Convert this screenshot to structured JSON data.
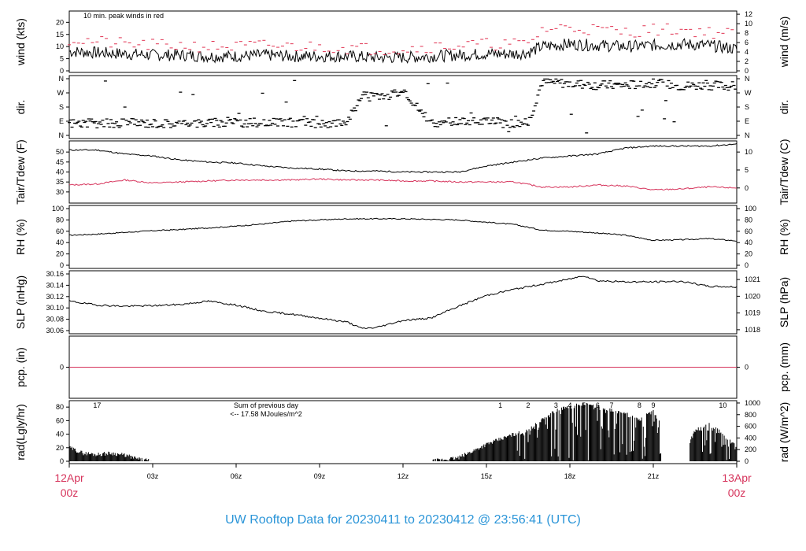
{
  "title": "UW Rooftop Data for 20230411  to  20230412 @ 23:56:41  (UTC)",
  "colors": {
    "title": "#2b95d8",
    "peak_wind": "#e0304f",
    "dewpoint": "#d6335b",
    "precip_line": "#d6335b",
    "solar_annotation": "#b026d6",
    "time_start_end": "#d6335b",
    "trace": "#000000"
  },
  "x_axis": {
    "tick_labels": [
      "12Apr",
      "03z",
      "06z",
      "09z",
      "12z",
      "15z",
      "18z",
      "21z",
      "13Apr"
    ],
    "start_label": {
      "line1": "12Apr",
      "line2": "00z"
    },
    "end_label": {
      "line1": "13Apr",
      "line2": "00z"
    },
    "hours": [
      0,
      3,
      6,
      9,
      12,
      15,
      18,
      21,
      24
    ]
  },
  "chart_data": [
    {
      "type": "line",
      "panel": "wind",
      "left_label": "wind (kts)",
      "right_label": "wind (m/s)",
      "annotation": "10 min. peak winds in red",
      "left_ticks": [
        "0",
        "5",
        "10",
        "15",
        "20"
      ],
      "right_ticks": [
        "0",
        "2",
        "4",
        "6",
        "8",
        "10",
        "12"
      ],
      "ylim": [
        0,
        24
      ],
      "series": [
        {
          "name": "wind speed",
          "x_hours": [
            0,
            1,
            2,
            3,
            4,
            5,
            6,
            7,
            8,
            9,
            10,
            11,
            12,
            13,
            14,
            15,
            16,
            16.5,
            17,
            18,
            19,
            20,
            21,
            22,
            23,
            24
          ],
          "values": [
            8,
            7.5,
            7,
            6.5,
            6.5,
            6,
            6,
            6.5,
            6,
            6,
            6,
            5.5,
            5.5,
            6,
            6.5,
            7,
            7,
            7.5,
            10,
            11,
            10.5,
            10,
            10.5,
            11,
            10.5,
            9
          ]
        },
        {
          "name": "10 min. peak winds",
          "x_hours": [
            0,
            1,
            2,
            3,
            4,
            5,
            6,
            7,
            8,
            9,
            10,
            11,
            12,
            13,
            14,
            15,
            16,
            16.5,
            17,
            18,
            19,
            20,
            21,
            22,
            23,
            24
          ],
          "values": [
            13,
            12,
            11,
            10.5,
            10.5,
            10,
            10,
            10.5,
            10,
            10,
            9.5,
            9,
            9,
            10,
            10.5,
            11,
            11,
            11,
            17,
            18,
            17,
            16,
            17,
            17,
            16,
            15
          ]
        }
      ]
    },
    {
      "type": "scatter",
      "panel": "direction",
      "left_label": "dir.",
      "right_label": "dir.",
      "left_ticks": [
        "N",
        "E",
        "S",
        "W",
        "N"
      ],
      "right_ticks": [
        "N",
        "E",
        "S",
        "W",
        "N"
      ],
      "ylim": [
        0,
        360
      ],
      "series": [
        {
          "name": "wind direction",
          "x_hours": [
            0,
            1,
            2,
            3,
            4,
            5,
            6,
            7,
            8,
            9,
            10,
            10.5,
            11,
            12,
            13,
            14,
            15,
            16,
            16.5,
            17,
            18,
            19,
            20,
            21,
            22,
            23,
            24
          ],
          "values": [
            80,
            75,
            80,
            80,
            75,
            80,
            80,
            80,
            80,
            75,
            85,
            250,
            240,
            270,
            80,
            85,
            85,
            80,
            75,
            340,
            330,
            320,
            320,
            330,
            315,
            320,
            310
          ]
        }
      ]
    },
    {
      "type": "line",
      "panel": "temperature",
      "left_label": "Tair/Tdew (F)",
      "right_label": "Tair/Tdew (C)",
      "left_ticks": [
        "30",
        "35",
        "40",
        "45",
        "50"
      ],
      "right_ticks": [
        "0",
        "5",
        "10"
      ],
      "ylim": [
        25,
        55
      ],
      "series": [
        {
          "name": "Tair",
          "x_hours": [
            0,
            1,
            2,
            3,
            4,
            5,
            6,
            7,
            8,
            9,
            10,
            11,
            12,
            13,
            14,
            15,
            16,
            17,
            18,
            19,
            20,
            21,
            22,
            23,
            24
          ],
          "values": [
            51,
            51,
            49,
            48,
            46,
            45,
            44.5,
            43,
            42,
            41.5,
            40.5,
            40.5,
            40,
            40,
            40,
            43,
            45,
            47,
            48,
            49,
            52,
            53,
            53,
            53,
            54
          ]
        },
        {
          "name": "Tdew",
          "x_hours": [
            0,
            1,
            2,
            3,
            4,
            5,
            6,
            7,
            8,
            9,
            10,
            11,
            12,
            13,
            14,
            15,
            16,
            17,
            18,
            19,
            20,
            21,
            22,
            23,
            24
          ],
          "values": [
            33.5,
            34,
            36,
            34.5,
            35,
            35.5,
            36,
            36,
            36,
            36.5,
            36,
            36,
            35.5,
            35.5,
            35,
            35,
            35,
            32.5,
            32.5,
            33.5,
            33,
            31,
            31.5,
            32.5,
            32
          ]
        }
      ]
    },
    {
      "type": "line",
      "panel": "relative humidity",
      "left_label": "RH (%)",
      "right_label": "RH (%)",
      "left_ticks": [
        "0",
        "20",
        "40",
        "60",
        "80",
        "100"
      ],
      "right_ticks": [
        "0",
        "20",
        "40",
        "60",
        "80",
        "100"
      ],
      "ylim": [
        0,
        100
      ],
      "series": [
        {
          "name": "RH",
          "x_hours": [
            0,
            1,
            2,
            3,
            4,
            5,
            6,
            7,
            8,
            9,
            10,
            11,
            12,
            13,
            14,
            15,
            16,
            17,
            18,
            19,
            20,
            21,
            22,
            23,
            24
          ],
          "values": [
            53,
            55,
            58,
            61,
            63,
            66,
            69,
            73,
            78,
            80,
            82,
            82,
            82,
            81,
            80,
            76,
            72,
            62,
            60,
            57,
            53,
            44,
            45,
            47,
            43
          ]
        }
      ]
    },
    {
      "type": "line",
      "panel": "sea level pressure",
      "left_label": "SLP (inHg)",
      "right_label": "SLP (hPa)",
      "left_ticks": [
        "30.06",
        "30.08",
        "30.10",
        "30.12",
        "30.14",
        "30.16"
      ],
      "right_ticks": [
        "1018",
        "1019",
        "1020",
        "1021"
      ],
      "ylim": [
        30.06,
        30.16
      ],
      "series": [
        {
          "name": "SLP",
          "x_hours": [
            0,
            1,
            2,
            3,
            4,
            5,
            6,
            7,
            8,
            9,
            10,
            10.5,
            11,
            12,
            13,
            14,
            15,
            16,
            17,
            18,
            18.5,
            19,
            20,
            21,
            22,
            23,
            24
          ],
          "values": [
            30.112,
            30.105,
            30.103,
            30.104,
            30.106,
            30.112,
            30.105,
            30.094,
            30.089,
            30.082,
            30.075,
            30.064,
            30.065,
            30.078,
            30.082,
            30.103,
            30.122,
            30.133,
            30.142,
            30.151,
            30.157,
            30.148,
            30.146,
            30.146,
            30.147,
            30.138,
            30.137
          ]
        }
      ]
    },
    {
      "type": "line",
      "panel": "precipitation",
      "left_label": "pcp. (in)",
      "right_label": "pcp. (mm)",
      "left_ticks": [
        "0"
      ],
      "right_ticks": [
        "0"
      ],
      "ylim": [
        -1,
        1
      ],
      "series": [
        {
          "name": "precipitation",
          "x_hours": [
            0,
            24
          ],
          "values": [
            0,
            0
          ]
        }
      ]
    },
    {
      "type": "bar",
      "panel": "solar radiation",
      "left_label": "rad(Lgly/hr)",
      "right_label": "rad (W/m^2)",
      "left_ticks": [
        "0",
        "20",
        "40",
        "60",
        "80"
      ],
      "right_ticks": [
        "0",
        "200",
        "400",
        "600",
        "800",
        "1000"
      ],
      "ylim": [
        0,
        86
      ],
      "annotation_sum_title": "Sum of previous day",
      "annotation_sum_value": "<-- 17.58 MJoules/m^2",
      "hour_markers": [
        "17",
        "1",
        "2",
        "3",
        "4",
        "5",
        "6",
        "7",
        "8",
        "9",
        "10"
      ],
      "hour_marker_positions_hours": [
        1,
        15.5,
        16.5,
        17.5,
        18,
        18.5,
        19,
        19.5,
        20.5,
        21,
        23.5
      ],
      "series": [
        {
          "name": "solar radiation",
          "x_hours": [
            0,
            0.5,
            1,
            1.5,
            2,
            2.5,
            3,
            13,
            14,
            15,
            16,
            16.5,
            17,
            17.5,
            18,
            18.5,
            19,
            19.5,
            20,
            20.5,
            21,
            22,
            22.5,
            23,
            23.5,
            24
          ],
          "values": [
            20,
            12,
            10,
            12,
            9,
            3,
            0,
            0,
            5,
            25,
            40,
            45,
            62,
            75,
            80,
            85,
            80,
            75,
            70,
            60,
            75,
            0,
            45,
            55,
            40,
            20
          ]
        }
      ]
    }
  ]
}
